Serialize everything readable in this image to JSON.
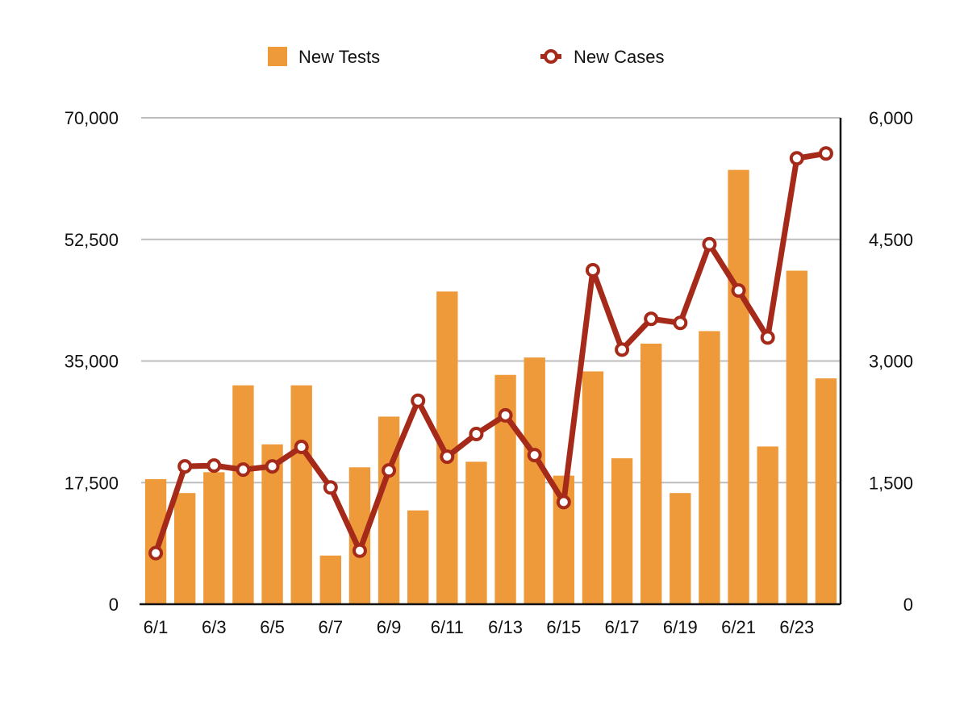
{
  "chart_data": {
    "type": "bar",
    "categories": [
      "6/1",
      "6/2",
      "6/3",
      "6/4",
      "6/5",
      "6/6",
      "6/7",
      "6/8",
      "6/9",
      "6/10",
      "6/11",
      "6/12",
      "6/13",
      "6/14",
      "6/15",
      "6/16",
      "6/17",
      "6/18",
      "6/19",
      "6/20",
      "6/21",
      "6/22",
      "6/23",
      "6/24"
    ],
    "x_tick_labels": [
      "6/1",
      "6/3",
      "6/5",
      "6/7",
      "6/9",
      "6/11",
      "6/13",
      "6/15",
      "6/17",
      "6/19",
      "6/21",
      "6/23"
    ],
    "series": [
      {
        "name": "New Tests",
        "type": "bar",
        "axis": "left",
        "color": "#EE9A3A",
        "values": [
          18000,
          16000,
          19000,
          31500,
          23000,
          31500,
          7000,
          19700,
          27000,
          13500,
          45000,
          20500,
          33000,
          35500,
          18500,
          33500,
          21000,
          37500,
          16000,
          39300,
          62500,
          22700,
          48000,
          32500
        ]
      },
      {
        "name": "New Cases",
        "type": "line",
        "axis": "right",
        "color": "#A52A1A",
        "values": [
          630,
          1700,
          1710,
          1660,
          1700,
          1940,
          1440,
          660,
          1650,
          2510,
          1820,
          2100,
          2330,
          1840,
          1260,
          4120,
          3140,
          3520,
          3470,
          4440,
          3870,
          3290,
          5500,
          5560
        ]
      }
    ],
    "y_left": {
      "min": 0,
      "max": 70000,
      "ticks": [
        "0",
        "17,500",
        "35,000",
        "52,500",
        "70,000"
      ]
    },
    "y_right": {
      "min": 0,
      "max": 6000,
      "ticks": [
        "0",
        "1,500",
        "3,000",
        "4,500",
        "6,000"
      ]
    },
    "grid": true,
    "legend_position": "top",
    "title": "",
    "xlabel": "",
    "ylabel": ""
  }
}
